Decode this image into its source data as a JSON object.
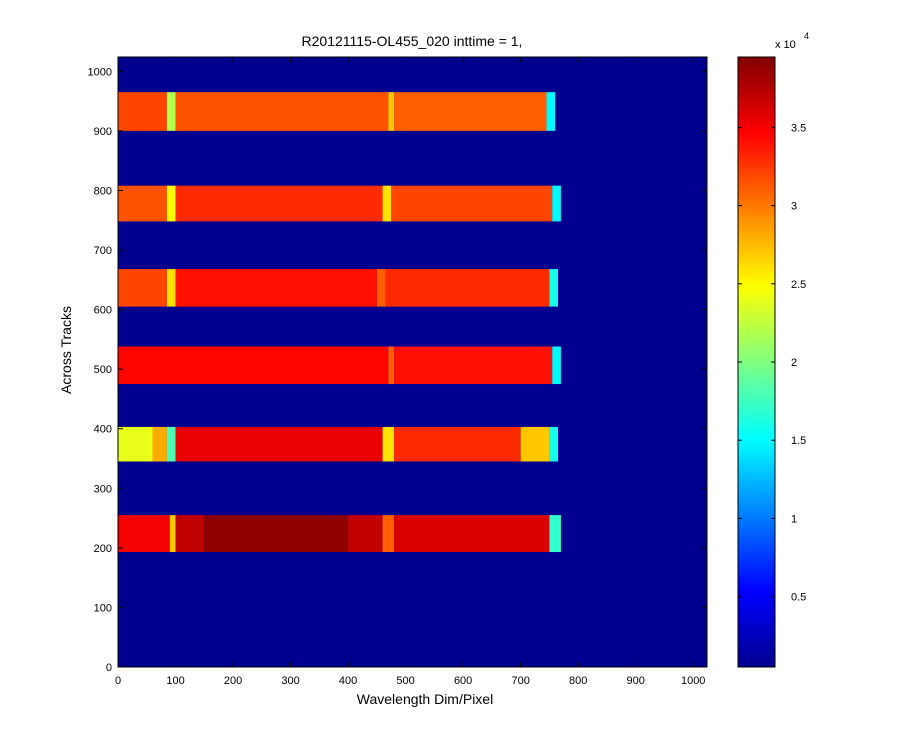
{
  "chart_data": {
    "type": "heatmap",
    "title": "R20121115-OL455_020 inttime = 1,",
    "xlabel": "Wavelength Dim/Pixel",
    "ylabel": "Across Tracks",
    "xlim": [
      0,
      1024
    ],
    "ylim": [
      0,
      1024
    ],
    "x_ticks": [
      0,
      100,
      200,
      300,
      400,
      500,
      600,
      700,
      800,
      900,
      1000
    ],
    "y_ticks": [
      0,
      100,
      200,
      300,
      400,
      500,
      600,
      700,
      800,
      900,
      1000
    ],
    "colormap": "jet",
    "background_value": 500,
    "colorbar": {
      "range": [
        500,
        39500
      ],
      "ticks": [
        5000,
        10000,
        15000,
        20000,
        25000,
        30000,
        35000
      ],
      "tick_labels": [
        "0.5",
        "1",
        "1.5",
        "2",
        "2.5",
        "3",
        "3.5"
      ],
      "multiplier_base": "x 10",
      "multiplier_exponent": "4"
    },
    "bands": [
      {
        "y_range": [
          900,
          965
        ],
        "x_range": [
          0,
          760
        ],
        "segments": [
          {
            "x": [
              0,
              85
            ],
            "value": 32000
          },
          {
            "x": [
              85,
              100
            ],
            "value": 22000
          },
          {
            "x": [
              100,
              470
            ],
            "value": 31500
          },
          {
            "x": [
              470,
              480
            ],
            "value": 27000
          },
          {
            "x": [
              480,
              745
            ],
            "value": 31000
          },
          {
            "x": [
              745,
              760
            ],
            "value": 15000
          }
        ]
      },
      {
        "y_range": [
          748,
          808
        ],
        "x_range": [
          0,
          770
        ],
        "segments": [
          {
            "x": [
              0,
              85
            ],
            "value": 31500
          },
          {
            "x": [
              85,
              100
            ],
            "value": 25000
          },
          {
            "x": [
              100,
              460
            ],
            "value": 33000
          },
          {
            "x": [
              460,
              475
            ],
            "value": 26000
          },
          {
            "x": [
              475,
              755
            ],
            "value": 32000
          },
          {
            "x": [
              755,
              770
            ],
            "value": 15000
          }
        ]
      },
      {
        "y_range": [
          605,
          668
        ],
        "x_range": [
          0,
          765
        ],
        "segments": [
          {
            "x": [
              0,
              85
            ],
            "value": 32000
          },
          {
            "x": [
              85,
              100
            ],
            "value": 26000
          },
          {
            "x": [
              100,
              450
            ],
            "value": 34000
          },
          {
            "x": [
              450,
              465
            ],
            "value": 31000
          },
          {
            "x": [
              465,
              750
            ],
            "value": 33000
          },
          {
            "x": [
              750,
              765
            ],
            "value": 16000
          }
        ]
      },
      {
        "y_range": [
          475,
          538
        ],
        "x_range": [
          0,
          770
        ],
        "segments": [
          {
            "x": [
              0,
              470
            ],
            "value": 34500
          },
          {
            "x": [
              470,
              480
            ],
            "value": 31000
          },
          {
            "x": [
              480,
              755
            ],
            "value": 34000
          },
          {
            "x": [
              755,
              770
            ],
            "value": 15000
          }
        ]
      },
      {
        "y_range": [
          345,
          403
        ],
        "x_range": [
          0,
          765
        ],
        "segments": [
          {
            "x": [
              0,
              60
            ],
            "value": 24000
          },
          {
            "x": [
              60,
              85
            ],
            "value": 28000
          },
          {
            "x": [
              85,
              100
            ],
            "value": 18000
          },
          {
            "x": [
              100,
              460
            ],
            "value": 35500
          },
          {
            "x": [
              460,
              480
            ],
            "value": 26000
          },
          {
            "x": [
              480,
              700
            ],
            "value": 33000
          },
          {
            "x": [
              700,
              750
            ],
            "value": 27000
          },
          {
            "x": [
              750,
              765
            ],
            "value": 16000
          }
        ]
      },
      {
        "y_range": [
          193,
          255
        ],
        "x_range": [
          0,
          770
        ],
        "segments": [
          {
            "x": [
              0,
              90
            ],
            "value": 35000
          },
          {
            "x": [
              90,
              100
            ],
            "value": 27000
          },
          {
            "x": [
              100,
              150
            ],
            "value": 37000
          },
          {
            "x": [
              150,
              400
            ],
            "value": 39000
          },
          {
            "x": [
              400,
              460
            ],
            "value": 37000
          },
          {
            "x": [
              460,
              480
            ],
            "value": 31000
          },
          {
            "x": [
              480,
              750
            ],
            "value": 36000
          },
          {
            "x": [
              750,
              770
            ],
            "value": 17000
          }
        ]
      }
    ]
  }
}
